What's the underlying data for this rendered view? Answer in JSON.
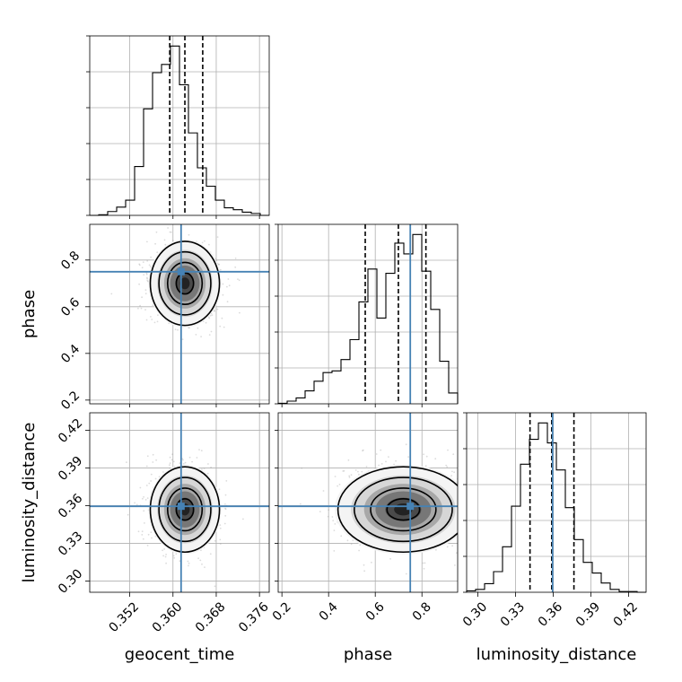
{
  "chart_data": {
    "type": "corner",
    "parameters": [
      {
        "name": "geocent_time",
        "label": "geocent_time",
        "range": [
          0.3446,
          0.3778
        ],
        "ticks": [
          0.352,
          0.36,
          0.368,
          0.376
        ],
        "tick_labels": [
          "0.352",
          "0.360",
          "0.368",
          "0.376"
        ],
        "quantiles": [
          0.3594,
          0.3622,
          0.3655
        ],
        "truth": 0.3615,
        "hist": {
          "edges": [
            0.3446,
            0.34626,
            0.34792,
            0.34958,
            0.35124,
            0.3529,
            0.35456,
            0.35622,
            0.35788,
            0.35954,
            0.3612,
            0.36286,
            0.36452,
            0.36618,
            0.36784,
            0.3695,
            0.37116,
            0.37282,
            0.37448,
            0.37614,
            0.3778
          ],
          "counts": [
            0,
            0.1,
            0.6,
            1.3,
            2.4,
            7.7,
            16.8,
            22.5,
            23.8,
            26.7,
            20.6,
            13.0,
            7.5,
            4.6,
            2.4,
            1.2,
            0.9,
            0.5,
            0.3,
            0
          ]
        }
      },
      {
        "name": "phase",
        "label": "phase",
        "range": [
          0.184,
          0.953
        ],
        "ticks": [
          0.2,
          0.4,
          0.6,
          0.8
        ],
        "tick_labels": [
          "0.2",
          "0.4",
          "0.6",
          "0.8"
        ],
        "quantiles": [
          0.557,
          0.699,
          0.817
        ],
        "truth": 0.75,
        "hist": {
          "edges": [
            0.184,
            0.22245,
            0.2609,
            0.29935,
            0.3378,
            0.37625,
            0.4147,
            0.45315,
            0.4916,
            0.53005,
            0.5685,
            0.60695,
            0.6454,
            0.68385,
            0.7223,
            0.76075,
            0.7992,
            0.83765,
            0.8761,
            0.91455,
            0.953
          ],
          "counts": [
            0.1,
            0.5,
            1.1,
            2.4,
            4.2,
            5.8,
            6.1,
            8.2,
            11.9,
            18.9,
            25.0,
            15.9,
            24.2,
            29.8,
            27.8,
            31.4,
            24.6,
            17.5,
            7.9,
            2.0
          ]
        }
      },
      {
        "name": "luminosity_distance",
        "label": "luminosity_distance",
        "range": [
          0.291,
          0.434
        ],
        "ticks": [
          0.3,
          0.33,
          0.36,
          0.39,
          0.42
        ],
        "tick_labels": [
          "0.30",
          "0.33",
          "0.36",
          "0.39",
          "0.42"
        ],
        "quantiles": [
          0.3415,
          0.3588,
          0.3765
        ],
        "truth": 0.3595,
        "hist": {
          "edges": [
            0.291,
            0.29815,
            0.3053,
            0.31245,
            0.3196,
            0.32675,
            0.3339,
            0.34105,
            0.3482,
            0.35535,
            0.3625,
            0.36965,
            0.3768,
            0.38395,
            0.3911,
            0.39825,
            0.4054,
            0.41255,
            0.4197,
            0.42685,
            0.434
          ],
          "counts": [
            0.2,
            0.4,
            1.2,
            2.9,
            6.4,
            12.1,
            18.0,
            21.5,
            23.8,
            21.0,
            17.2,
            11.9,
            7.4,
            4.2,
            2.7,
            1.3,
            0.4,
            0.1,
            0.1,
            0
          ]
        }
      }
    ],
    "pairs": [
      {
        "x": "geocent_time",
        "y": "phase",
        "density_center": [
          0.3622,
          0.7
        ],
        "density_spread": [
          0.0032,
          0.09
        ],
        "contour_levels": [
          "outer",
          "middle",
          "inner",
          "core"
        ]
      },
      {
        "x": "geocent_time",
        "y": "luminosity_distance",
        "density_center": [
          0.3622,
          0.357
        ],
        "density_spread": [
          0.0032,
          0.017
        ],
        "contour_levels": [
          "outer",
          "middle",
          "inner",
          "core"
        ]
      },
      {
        "x": "phase",
        "y": "luminosity_distance",
        "density_center": [
          0.72,
          0.357
        ],
        "density_spread": [
          0.14,
          0.017
        ],
        "contour_levels": [
          "outer",
          "middle",
          "inner",
          "core"
        ]
      }
    ],
    "truth_color": "#4682b4",
    "quantile_style": "dashed black",
    "grid": true,
    "legend": "none"
  }
}
